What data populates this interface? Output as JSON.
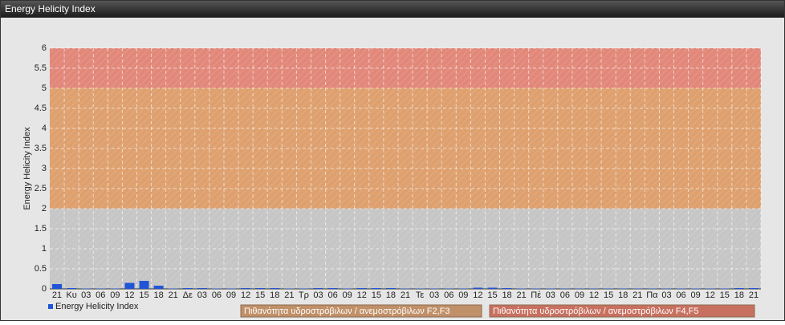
{
  "chart_data": {
    "type": "bar",
    "title": "Energy Helicity Index",
    "y_label": "Energy Helicity Index",
    "categories": [
      "21",
      "Κυ",
      "03",
      "06",
      "09",
      "12",
      "15",
      "18",
      "21",
      "Δε",
      "03",
      "06",
      "09",
      "12",
      "15",
      "18",
      "21",
      "Τρ",
      "03",
      "06",
      "09",
      "12",
      "15",
      "18",
      "21",
      "Τε",
      "03",
      "06",
      "09",
      "12",
      "15",
      "18",
      "21",
      "Πέ",
      "03",
      "06",
      "09",
      "12",
      "15",
      "18",
      "21",
      "Πα",
      "03",
      "06",
      "09",
      "12",
      "15",
      "18",
      "21"
    ],
    "series": [
      {
        "name": "Energy Helicity Index",
        "color": "#1f55d6",
        "values": [
          0.12,
          0.02,
          0.01,
          0.01,
          0.01,
          0.15,
          0.2,
          0.08,
          0.01,
          0.02,
          0.02,
          0.01,
          0.01,
          0.02,
          0.02,
          0.02,
          0.01,
          0.01,
          0.02,
          0.02,
          0.01,
          0.02,
          0.02,
          0.02,
          0.01,
          0.01,
          0.01,
          0.01,
          0.01,
          0.03,
          0.03,
          0.02,
          0.01,
          0.01,
          0.01,
          0.01,
          0.01,
          0.01,
          0.01,
          0.01,
          0.01,
          0.01,
          0.01,
          0.01,
          0.01,
          0.01,
          0.01,
          0.02,
          0.02
        ]
      }
    ],
    "bands": [
      {
        "from": 0,
        "to": 2,
        "color": "#c6c6c6"
      },
      {
        "from": 2,
        "to": 5,
        "color": "#dea06e",
        "legend_color": "#c09068",
        "label": "Πιθανότητα υδροστρόβιλων / ανεμοστρόβιλων F2,F3"
      },
      {
        "from": 5,
        "to": 6,
        "color": "#e2887a",
        "legend_color": "#c87060",
        "label": "Πιθανότητα υδροστρόβιλων / ανεμοστρόβιλων F4,F5"
      }
    ],
    "ylim": [
      0,
      6
    ],
    "yticks": [
      0,
      0.5,
      1,
      1.5,
      2,
      2.5,
      3,
      3.5,
      4,
      4.5,
      5,
      5.5,
      6
    ],
    "grid": true
  }
}
